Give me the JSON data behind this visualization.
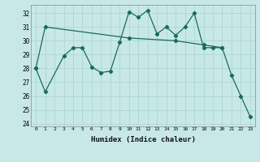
{
  "xlabel": "Humidex (Indice chaleur)",
  "background_color": "#c8e8e8",
  "grid_color": "#b0d8d8",
  "line_color": "#1a6b5a",
  "xlim": [
    -0.5,
    23.5
  ],
  "ylim": [
    23.8,
    32.6
  ],
  "yticks": [
    24,
    25,
    26,
    27,
    28,
    29,
    30,
    31,
    32
  ],
  "xticks": [
    0,
    1,
    2,
    3,
    4,
    5,
    6,
    7,
    8,
    9,
    10,
    11,
    12,
    13,
    14,
    15,
    16,
    17,
    18,
    19,
    20,
    21,
    22,
    23
  ],
  "series1_x": [
    0,
    1,
    3,
    4,
    5,
    6,
    7,
    8,
    9,
    10,
    11,
    12,
    13,
    14,
    15,
    16,
    17,
    18,
    19,
    20,
    21,
    22,
    23
  ],
  "series1_y": [
    28.0,
    26.3,
    28.9,
    29.5,
    29.5,
    28.1,
    27.7,
    27.8,
    29.9,
    32.1,
    31.7,
    32.2,
    30.5,
    31.0,
    30.4,
    31.0,
    32.0,
    29.5,
    29.5,
    29.5,
    27.5,
    26.0,
    24.5
  ],
  "series2_x": [
    0,
    1,
    10,
    15,
    18,
    20
  ],
  "series2_y": [
    28.0,
    31.0,
    30.2,
    30.0,
    29.7,
    29.5
  ]
}
